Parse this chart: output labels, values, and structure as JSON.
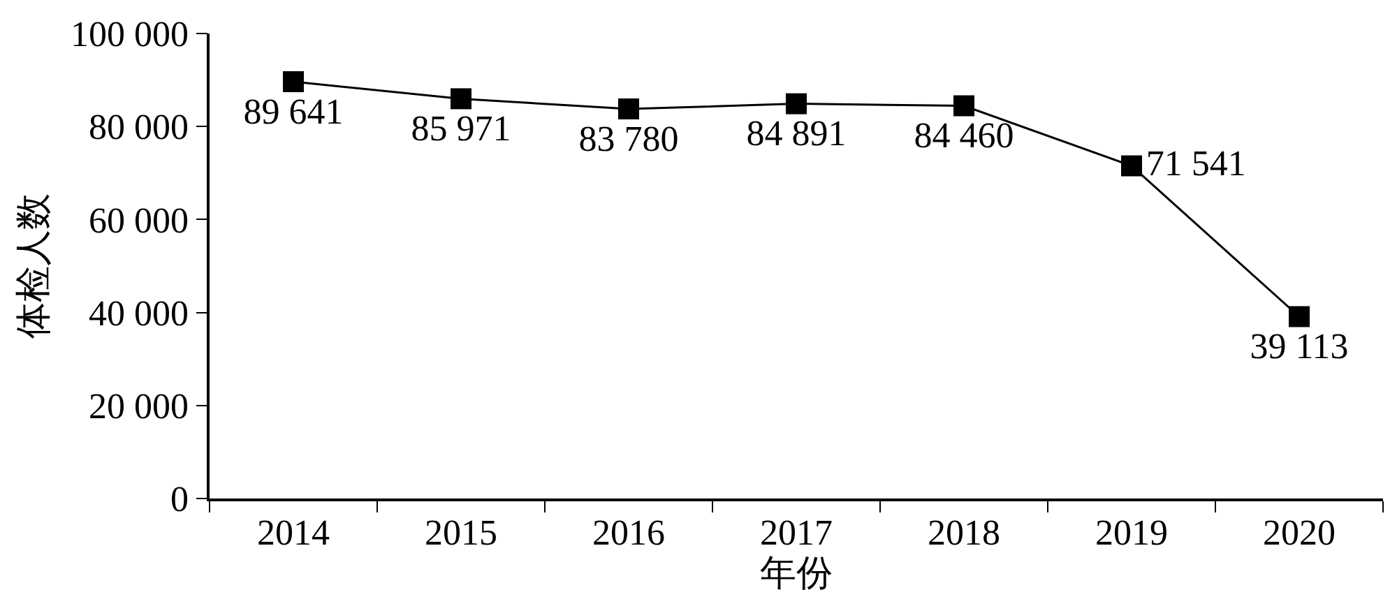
{
  "chart_data": {
    "type": "line",
    "xlabel": "年份",
    "ylabel": "体检人数",
    "categories": [
      "2014",
      "2015",
      "2016",
      "2017",
      "2018",
      "2019",
      "2020"
    ],
    "series": [
      {
        "color": "#000000",
        "values": [
          89641,
          85971,
          83780,
          84891,
          84460,
          71541,
          39113
        ],
        "value_labels": [
          "89 641",
          "85 971",
          "83 780",
          "84 891",
          "84 460",
          "71 541",
          "39 113"
        ]
      }
    ],
    "ylim": [
      0,
      100000
    ],
    "yticks": [
      {
        "value": 0,
        "label": "0"
      },
      {
        "value": 20000,
        "label": "20 000"
      },
      {
        "value": 40000,
        "label": "40 000"
      },
      {
        "value": 60000,
        "label": "60 000"
      },
      {
        "value": 80000,
        "label": "80 000"
      },
      {
        "value": 100000,
        "label": "100 000"
      }
    ],
    "grid": false,
    "marker": "square",
    "line_style": "solid"
  }
}
